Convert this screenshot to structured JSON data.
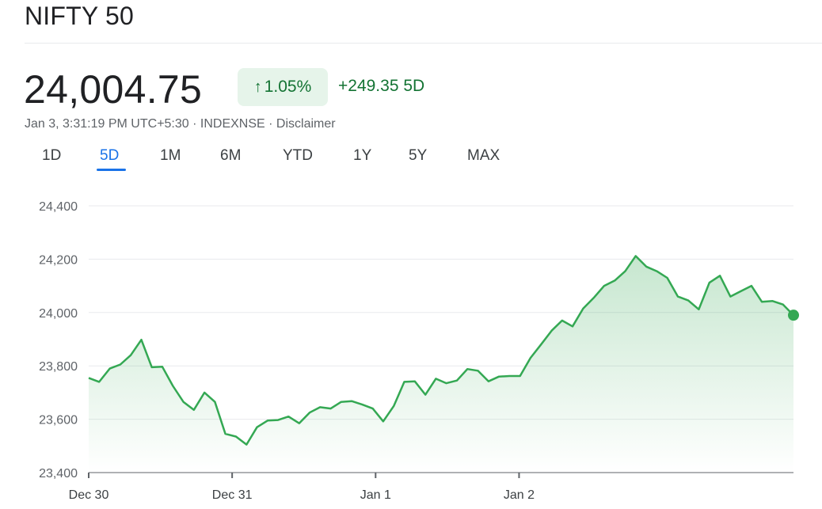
{
  "header": {
    "title": "NIFTY 50",
    "price": "24,004.75",
    "percent_change": "1.05%",
    "percent_arrow": "↑",
    "abs_change": "+249.35 5D",
    "meta": "Jan 3, 3:31:19 PM UTC+5:30 · INDEXNSE · Disclaimer"
  },
  "tabs": [
    {
      "label": "1D"
    },
    {
      "label": "5D"
    },
    {
      "label": "1M"
    },
    {
      "label": "6M"
    },
    {
      "label": "YTD"
    },
    {
      "label": "1Y"
    },
    {
      "label": "5Y"
    },
    {
      "label": "MAX"
    }
  ],
  "active_tab": "5D",
  "colors": {
    "line": "#34a853",
    "up_text": "#137333",
    "badge_bg": "#e6f4ea",
    "active_tab": "#1a73e8"
  },
  "chart_data": {
    "type": "area",
    "title": "",
    "xlabel": "",
    "ylabel": "",
    "ylim": [
      23400,
      24400
    ],
    "yticks": [
      23400,
      23600,
      23800,
      24000,
      24200,
      24400
    ],
    "ytick_labels": [
      "23,400",
      "23,600",
      "23,800",
      "24,000",
      "24,200",
      "24,400"
    ],
    "xticks": [
      0,
      1,
      2,
      3
    ],
    "xtick_labels": [
      "Dec 30",
      "Dec 31",
      "Jan 1",
      "Jan 2"
    ],
    "grid": true,
    "last_point_marker": true,
    "series": [
      {
        "x": [
          0,
          0.073,
          0.147,
          0.22,
          0.293,
          0.367,
          0.44,
          0.513,
          0.587,
          0.66,
          0.733,
          0.807,
          0.88,
          0.953,
          1.027,
          1.1,
          1.173,
          1.247,
          1.32,
          1.393,
          1.467,
          1.54,
          1.613,
          1.687,
          1.76,
          1.833,
          1.907,
          1.98,
          2.053,
          2.127,
          2.2,
          2.273,
          2.347,
          2.42,
          2.493,
          2.567,
          2.64,
          2.713,
          2.787,
          2.86,
          2.933,
          3.007,
          3.08,
          3.153,
          3.227,
          3.3,
          3.373,
          3.447,
          3.52,
          3.593,
          3.667,
          3.74,
          3.813,
          3.887,
          3.96,
          4.033,
          4.107,
          4.18,
          4.253,
          4.327,
          4.4,
          4.473,
          4.547,
          4.62,
          4.693,
          4.767,
          4.84,
          4.913
        ],
        "y": [
          23755,
          23740,
          23790,
          23805,
          23840,
          23898,
          23795,
          23797,
          23725,
          23665,
          23635,
          23700,
          23665,
          23545,
          23535,
          23505,
          23570,
          23595,
          23597,
          23610,
          23585,
          23625,
          23645,
          23640,
          23665,
          23668,
          23655,
          23640,
          23592,
          23650,
          23740,
          23742,
          23692,
          23752,
          23735,
          23745,
          23788,
          23782,
          23742,
          23760,
          23762,
          23762,
          23830,
          23880,
          23932,
          23970,
          23948,
          24015,
          24055,
          24100,
          24120,
          24155,
          24212,
          24172,
          24155,
          24130,
          24060,
          24045,
          24012,
          24112,
          24138,
          24060,
          24080,
          24100,
          24040,
          24043,
          24030,
          23990
        ]
      }
    ]
  }
}
